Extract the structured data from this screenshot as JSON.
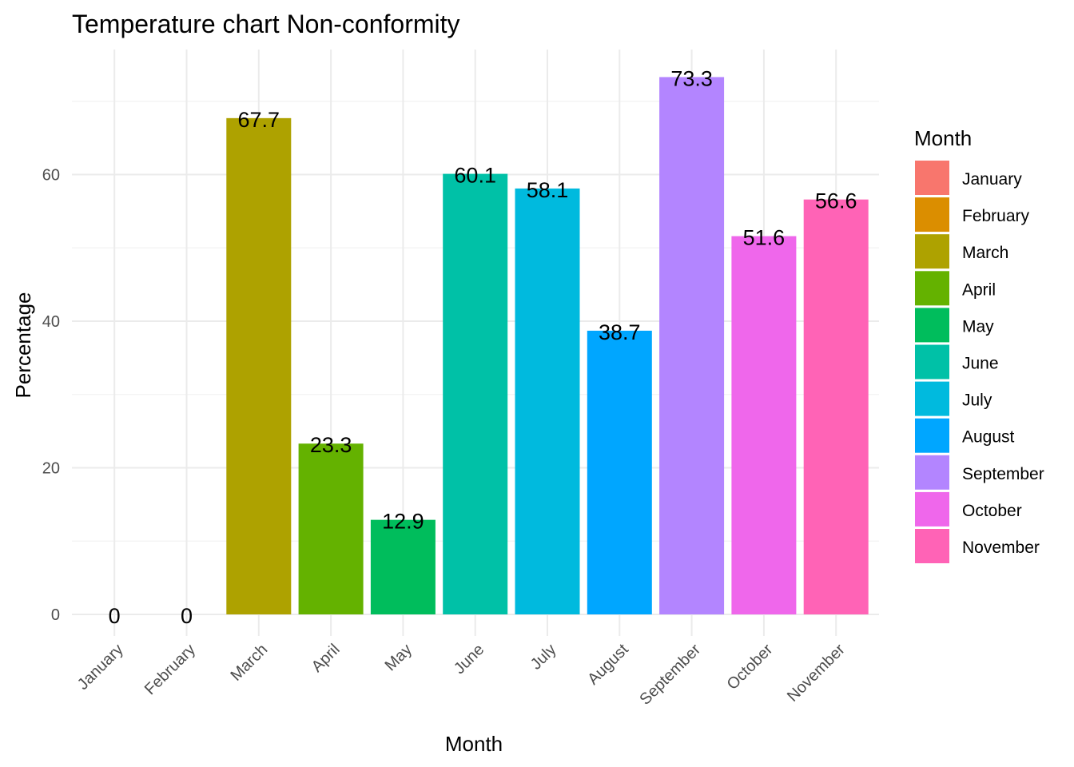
{
  "chart_data": {
    "type": "bar",
    "title": "Temperature chart Non-conformity",
    "xlabel": "Month",
    "ylabel": "Percentage",
    "categories": [
      "January",
      "February",
      "March",
      "April",
      "May",
      "June",
      "July",
      "August",
      "September",
      "October",
      "November"
    ],
    "values": [
      0,
      0,
      67.7,
      23.3,
      12.9,
      60.1,
      58.1,
      38.7,
      73.3,
      51.6,
      56.6
    ],
    "data_labels": [
      "0",
      "0",
      "67.7",
      "23.3",
      "12.9",
      "60.1",
      "58.1",
      "38.7",
      "73.3",
      "51.6",
      "56.6"
    ],
    "colors": [
      "#F8766D",
      "#DB8E00",
      "#AEA200",
      "#64B200",
      "#00BD5C",
      "#00C1A7",
      "#00BADE",
      "#00A6FF",
      "#B385FF",
      "#EF67EB",
      "#FF63B6"
    ],
    "yticks": [
      0,
      20,
      40,
      60
    ],
    "ylim": [
      0,
      76.97
    ],
    "grid": true,
    "legend": {
      "title": "Month",
      "position": "right",
      "entries": [
        "January",
        "February",
        "March",
        "April",
        "May",
        "June",
        "July",
        "August",
        "September",
        "October",
        "November"
      ]
    }
  }
}
